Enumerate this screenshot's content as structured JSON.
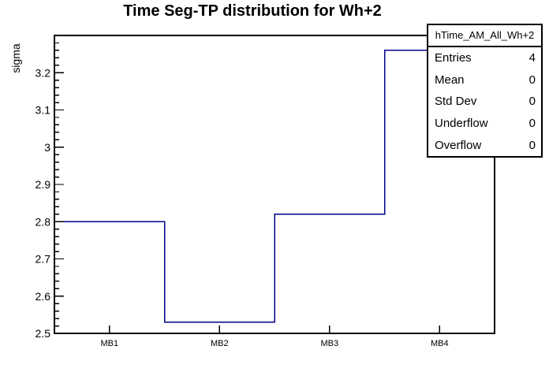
{
  "chart_data": {
    "type": "bar",
    "style": "unfilled-step-histogram",
    "title": "Time Seg-TP distribution for Wh+2",
    "xlabel": "",
    "ylabel": "sigma",
    "categories": [
      "MB1",
      "MB2",
      "MB3",
      "MB4"
    ],
    "values": [
      2.8,
      2.53,
      2.82,
      3.26
    ],
    "ylim": [
      2.5,
      3.3
    ],
    "y_major_step": 0.1,
    "y_minor_step": 0.02,
    "ytick_labels": [
      "2.5",
      "2.6",
      "2.7",
      "2.8",
      "2.9",
      "3",
      "3.1",
      "3.2"
    ],
    "grid": false,
    "legend_position": "none",
    "line_color": "#00008c",
    "frame_color": "#000000",
    "background_color": "#ffffff"
  },
  "stats_box": {
    "header": "hTime_AM_All_Wh+2",
    "rows": [
      {
        "label": "Entries",
        "value": "4"
      },
      {
        "label": "Mean",
        "value": "0"
      },
      {
        "label": "Std Dev",
        "value": "0"
      },
      {
        "label": "Underflow",
        "value": "0"
      },
      {
        "label": "Overflow",
        "value": "0"
      }
    ]
  }
}
